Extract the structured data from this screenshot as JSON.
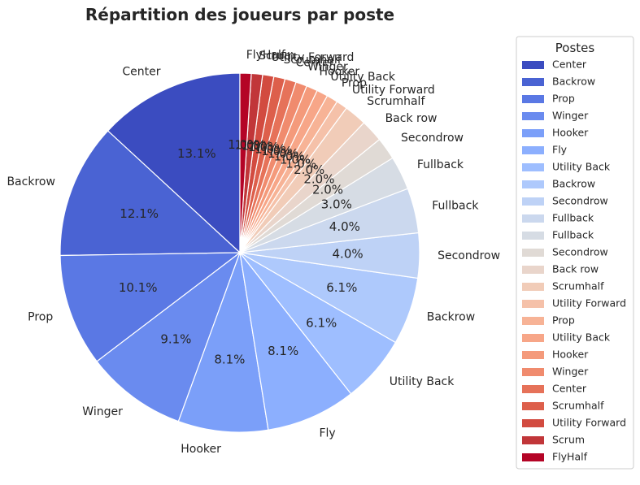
{
  "chart_data": {
    "type": "pie",
    "title": "Répartition des joueurs par poste",
    "legend_title": "Postes",
    "legend_position": "right",
    "start_angle_deg": 90,
    "direction": "counterclockwise",
    "categories": [
      "Center",
      "Backrow",
      "Prop",
      "Winger",
      "Hooker",
      "Fly",
      "Utility Back",
      "Backrow",
      "Secondrow",
      "Fullback",
      "Fullback",
      "Secondrow",
      "Back row",
      "Scrumhalf",
      "Utility Forward",
      "Prop",
      "Utility Back",
      "Hooker",
      "Winger",
      "Center",
      "Scrumhalf",
      "Utility Forward",
      "Scrum",
      "FlyHalf"
    ],
    "values": [
      13,
      12,
      10,
      9,
      8,
      8,
      6,
      6,
      4,
      4,
      3,
      2,
      2,
      2,
      1,
      1,
      1,
      1,
      1,
      1,
      1,
      1,
      1,
      1
    ],
    "pct_labels": [
      "13.1%",
      "12.1%",
      "10.1%",
      "9.1%",
      "8.1%",
      "8.1%",
      "6.1%",
      "6.1%",
      "4.0%",
      "4.0%",
      "3.0%",
      "2.0%",
      "2.0%",
      "2.0%",
      "1.0%",
      "1.0%",
      "1.0%",
      "1.0%",
      "1.0%",
      "1.0%",
      "1.0%",
      "1.0%",
      "1.0%",
      "1.0%"
    ],
    "colors": [
      "#3b4cc0",
      "#4a63d3",
      "#5a78e4",
      "#6a8bef",
      "#7b9ff9",
      "#8caffe",
      "#9ebeff",
      "#aec9fc",
      "#bed2f6",
      "#cbd8ee",
      "#d6dce4",
      "#e0dad5",
      "#e9d5cb",
      "#f1ccb8",
      "#f5c1a9",
      "#f7b396",
      "#f7a688",
      "#f49a7b",
      "#f08b6e",
      "#e67259",
      "#dd5f4b",
      "#d24b40",
      "#c13639",
      "#b40426"
    ]
  }
}
